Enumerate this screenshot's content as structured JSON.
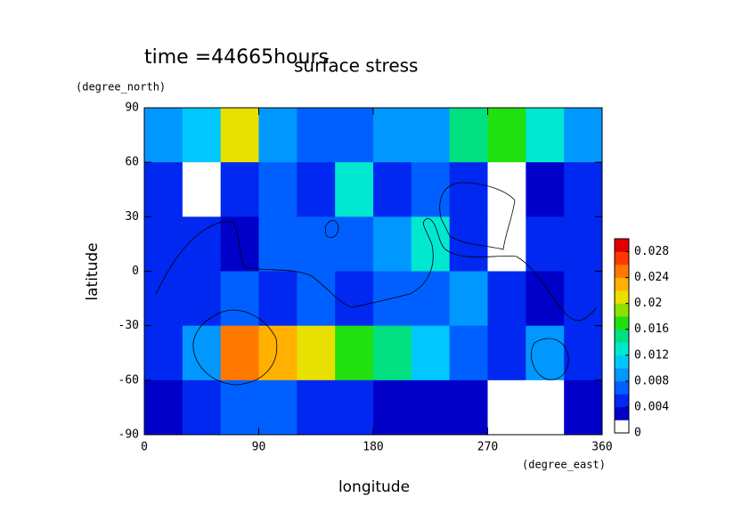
{
  "chart_data": {
    "type": "contour",
    "title": "surface stress",
    "subtitle": "time =44665hours",
    "x_label": "longitude",
    "x_unit": "(degree_east)",
    "y_label": "latitude",
    "y_unit": "(degree_north)",
    "xlim": [
      0,
      360
    ],
    "xticks": [
      0,
      90,
      180,
      270,
      360
    ],
    "ylim": [
      -90,
      90
    ],
    "yticks": [
      -90,
      -60,
      -30,
      0,
      30,
      60,
      90
    ],
    "x": [
      15,
      45,
      75,
      105,
      135,
      165,
      195,
      225,
      255,
      285,
      315,
      345
    ],
    "y": [
      75,
      45,
      15,
      -15,
      -45,
      -75
    ],
    "values": [
      [
        0.008,
        0.01,
        0.02,
        0.008,
        0.006,
        0.006,
        0.008,
        0.008,
        0.014,
        0.016,
        0.012,
        0.008
      ],
      [
        0.004,
        0,
        0.004,
        0.006,
        0.004,
        0.012,
        0.004,
        0.006,
        0.004,
        0,
        0.002,
        0.004
      ],
      [
        0.004,
        0.004,
        0.002,
        0.006,
        0.006,
        0.006,
        0.008,
        0.012,
        0.004,
        0,
        0.004,
        0.004
      ],
      [
        0.004,
        0.004,
        0.006,
        0.004,
        0.006,
        0.004,
        0.006,
        0.006,
        0.008,
        0.004,
        0.002,
        0.004
      ],
      [
        0.004,
        0.008,
        0.024,
        0.022,
        0.02,
        0.016,
        0.014,
        0.01,
        0.006,
        0.004,
        0.008,
        0.004
      ],
      [
        0.002,
        0.004,
        0.006,
        0.006,
        0.004,
        0.004,
        0.002,
        0.002,
        0.002,
        0,
        0,
        0.002
      ]
    ],
    "clim": [
      0,
      0.03
    ],
    "cticks": [
      0,
      0.004,
      0.008,
      0.012,
      0.016,
      0.02,
      0.024,
      0.028
    ],
    "colors": [
      "#ffffff",
      "#0000c8",
      "#0028f0",
      "#0060ff",
      "#0098ff",
      "#00c8ff",
      "#00e8d0",
      "#00e080",
      "#20e010",
      "#90e000",
      "#e8e000",
      "#ffb000",
      "#ff7800",
      "#ff3800",
      "#e00000"
    ]
  }
}
